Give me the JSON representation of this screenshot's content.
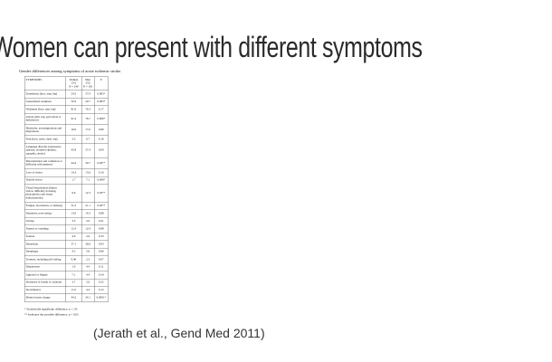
{
  "slide": {
    "title": "Women can present with different symptoms",
    "citation": "(Jerath et al., Gend Med 2011)"
  },
  "table": {
    "caption": "Gender differences among symptoms of acute ischemic stroke.",
    "headers": {
      "symptom": "SYMPTOMS",
      "women": "Women\n(%)\nN = 240",
      "men": "Men\n(%)\nN = 181",
      "p": "P"
    },
    "rows": [
      {
        "symptom": "Paresthesia (face, arm, leg)",
        "women": "24.2",
        "men": "37.9",
        "p": "0.005*"
      },
      {
        "symptom": "Generalized weakness",
        "women": "32.9",
        "men": "20.7",
        "p": "0.005*"
      },
      {
        "symptom": "Weakness (face, arm, leg)",
        "women": "81.6",
        "men": "76.3",
        "p": "0.17"
      },
      {
        "symptom": "Ataxia (arm, leg, gait ataxia or imbalance)",
        "women": "61.4",
        "men": "76.7",
        "p": "0.006*"
      },
      {
        "symptom": "Headache, non-migrainous and migrainous",
        "women": "16.0",
        "men": "17.0",
        "p": "0.80"
      },
      {
        "symptom": "Pain (face, neck, chest, leg)",
        "women": "3.3",
        "men": "6.7",
        "p": "0.16"
      },
      {
        "symptom": "Language disorder (expressive aphasia, receptive aphasia, agraphia, alexia)",
        "women": "45.8",
        "men": "37.4",
        "p": "0.09"
      },
      {
        "symptom": "Disorientation and confusion or difficulty with memory",
        "women": "44.4",
        "men": "34.7",
        "p": "0.04**"
      },
      {
        "symptom": "Loss of vision",
        "women": "14.3",
        "men": "15.6",
        "p": "0.10"
      },
      {
        "symptom": "Double vision",
        "women": "1.7",
        "men": "7.1",
        "p": "0.008*"
      },
      {
        "symptom": "Visual disturbances (blurry vision, difficulty focusing, photophobia and visual hallucinations)",
        "women": "9.6",
        "men": "12.3",
        "p": "0.03**"
      },
      {
        "symptom": "Fatigue, drowsiness, or lethargy",
        "women": "31.2",
        "men": "21.1",
        "p": "0.02**"
      },
      {
        "symptom": "Dizziness, non-vertigo",
        "women": "13.9",
        "men": "14.3",
        "p": "0.88"
      },
      {
        "symptom": "Vertigo",
        "women": "3.3",
        "men": "5.0",
        "p": "0.21"
      },
      {
        "symptom": "Nausea or vomiting",
        "women": "12.4",
        "men": "12.9",
        "p": "0.88"
      },
      {
        "symptom": "Seizure",
        "women": "4.9",
        "men": "2.9",
        "p": "0.33"
      },
      {
        "symptom": "Dysarthria",
        "women": "37.1",
        "men": "36.6",
        "p": "0.93"
      },
      {
        "symptom": "Dysphagia",
        "women": "4.5",
        "men": "5.6",
        "p": "0.80"
      },
      {
        "symptom": "Tremors, including pill-rolling",
        "women": "0.40",
        "men": "2.3",
        "p": "0.07"
      },
      {
        "symptom": "Diaphoresis",
        "women": "1.9",
        "men": "4.4",
        "p": "0.11"
      },
      {
        "symptom": "Agitated or fidgety",
        "women": "7.1",
        "men": "4.4",
        "p": "0.24"
      },
      {
        "symptom": "Shortness of breath or cyanosis",
        "women": "3.7",
        "men": "5.0",
        "p": "0.52"
      },
      {
        "symptom": "Incontinence",
        "women": "11.0",
        "men": "4.4",
        "p": "0.12"
      },
      {
        "symptom": "Mental status change",
        "women": "44.2",
        "men": "24.1",
        "p": "0.0001*"
      }
    ],
    "footnotes": [
      "* Statistically significant difference, p < .05",
      "** Indicates the possible difference, p < 0.05"
    ]
  }
}
